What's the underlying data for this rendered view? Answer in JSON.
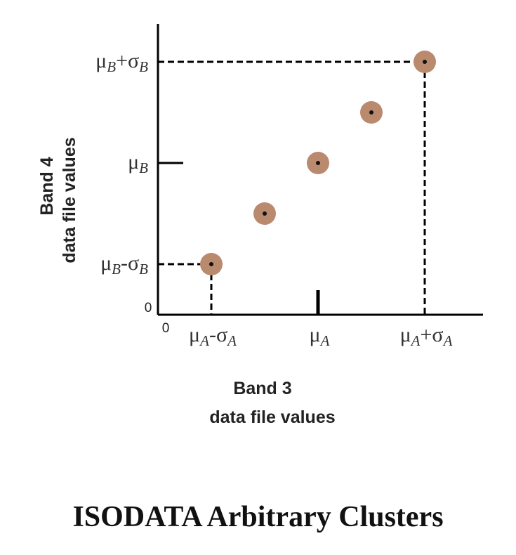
{
  "caption": "ISODATA Arbitrary Clusters",
  "chart_data": {
    "type": "scatter",
    "xlabel": [
      "Band 3",
      "data file values"
    ],
    "ylabel": [
      "Band 4",
      "data file values"
    ],
    "origin_labels": {
      "x": "0",
      "y": "0"
    },
    "x_ticks": [
      {
        "value": 1,
        "base": "μ",
        "sub1": "A",
        "op": "-",
        "sym": "σ",
        "sub2": "A"
      },
      {
        "value": 3,
        "base": "μ",
        "sub1": "A"
      },
      {
        "value": 5,
        "base": "μ",
        "sub1": "A",
        "op": "+",
        "sym": "σ",
        "sub2": "A"
      }
    ],
    "y_ticks": [
      {
        "value": 1,
        "base": "μ",
        "sub1": "B",
        "op": "-",
        "sym": "σ",
        "sub2": "B"
      },
      {
        "value": 3,
        "base": "μ",
        "sub1": "B"
      },
      {
        "value": 5,
        "base": "μ",
        "sub1": "B",
        "op": "+",
        "sym": "σ",
        "sub2": "B"
      }
    ],
    "points": [
      {
        "x": 1,
        "y": 1
      },
      {
        "x": 2,
        "y": 2
      },
      {
        "x": 3,
        "y": 3
      },
      {
        "x": 4,
        "y": 4
      },
      {
        "x": 5,
        "y": 5
      }
    ],
    "xlim": [
      0,
      5.4
    ],
    "ylim": [
      0,
      5.6
    ],
    "colors": {
      "cluster_halo": "#B98A6E",
      "cluster_center": "#111111",
      "axis": "#000000"
    }
  }
}
